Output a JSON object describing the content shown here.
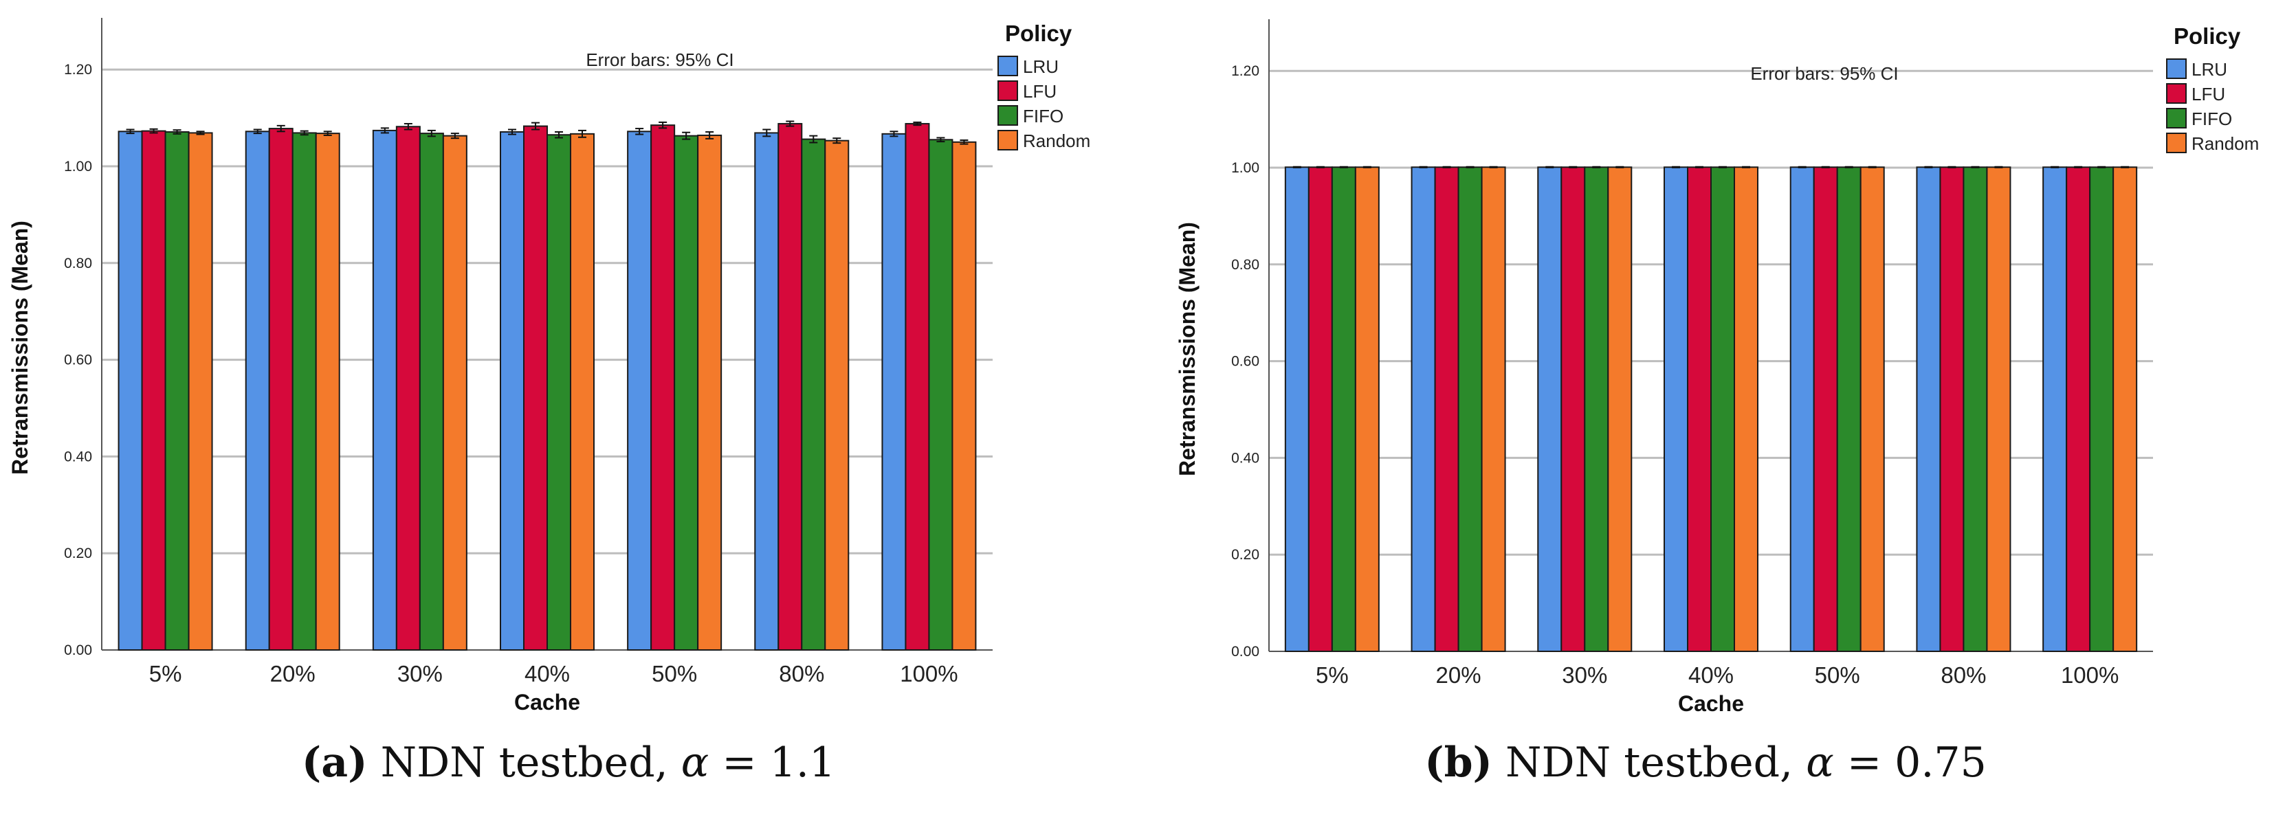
{
  "chart_data": [
    {
      "type": "bar",
      "panel": "a",
      "annotation": "Error bars: 95% CI",
      "xlabel": "Cache",
      "ylabel": "Retransmissions (Mean)",
      "ylim": [
        0,
        1.25
      ],
      "yticks": [
        "0.00",
        "0.20",
        "0.40",
        "0.60",
        "0.80",
        "1.00",
        "1.20"
      ],
      "grid": true,
      "legend_title": "Policy",
      "legend_position": "top-right",
      "categories": [
        "5%",
        "20%",
        "30%",
        "40%",
        "50%",
        "80%",
        "100%"
      ],
      "series": [
        {
          "name": "LRU",
          "color": "#5593e6",
          "values": [
            1.072,
            1.072,
            1.074,
            1.071,
            1.072,
            1.069,
            1.067
          ],
          "ci": [
            0.004,
            0.004,
            0.005,
            0.005,
            0.006,
            0.007,
            0.005
          ]
        },
        {
          "name": "LFU",
          "color": "#d6093b",
          "values": [
            1.073,
            1.078,
            1.082,
            1.083,
            1.085,
            1.088,
            1.088
          ],
          "ci": [
            0.004,
            0.006,
            0.006,
            0.007,
            0.006,
            0.005,
            0.003
          ]
        },
        {
          "name": "FIFO",
          "color": "#2b8a2b",
          "values": [
            1.071,
            1.069,
            1.068,
            1.065,
            1.063,
            1.056,
            1.055
          ],
          "ci": [
            0.004,
            0.004,
            0.006,
            0.006,
            0.007,
            0.007,
            0.004
          ]
        },
        {
          "name": "Random",
          "color": "#f47a2b",
          "values": [
            1.069,
            1.068,
            1.063,
            1.067,
            1.064,
            1.053,
            1.05
          ],
          "ci": [
            0.003,
            0.004,
            0.005,
            0.007,
            0.007,
            0.005,
            0.004
          ]
        }
      ],
      "caption": {
        "label": "(a)",
        "text": "NDN testbed,",
        "alpha_symbol": "α",
        "alpha_value": "= 1.1"
      }
    },
    {
      "type": "bar",
      "panel": "b",
      "annotation": "Error bars: 95% CI",
      "xlabel": "Cache",
      "ylabel": "Retransmissions (Mean)",
      "ylim": [
        0,
        1.25
      ],
      "yticks": [
        "0.00",
        "0.20",
        "0.40",
        "0.60",
        "0.80",
        "1.00",
        "1.20"
      ],
      "grid": true,
      "legend_title": "Policy",
      "legend_position": "top-right",
      "categories": [
        "5%",
        "20%",
        "30%",
        "40%",
        "50%",
        "80%",
        "100%"
      ],
      "series": [
        {
          "name": "LRU",
          "color": "#5593e6",
          "values": [
            1.001,
            1.001,
            1.001,
            1.001,
            1.001,
            1.001,
            1.001
          ],
          "ci": [
            0.0008,
            0.0008,
            0.0008,
            0.0008,
            0.0008,
            0.0008,
            0.0008
          ]
        },
        {
          "name": "LFU",
          "color": "#d6093b",
          "values": [
            1.001,
            1.001,
            1.001,
            1.001,
            1.001,
            1.001,
            1.001
          ],
          "ci": [
            0.0008,
            0.0008,
            0.0008,
            0.0008,
            0.0008,
            0.0008,
            0.0008
          ]
        },
        {
          "name": "FIFO",
          "color": "#2b8a2b",
          "values": [
            1.001,
            1.001,
            1.001,
            1.001,
            1.001,
            1.001,
            1.001
          ],
          "ci": [
            0.0008,
            0.0008,
            0.0008,
            0.0008,
            0.0008,
            0.0008,
            0.0008
          ]
        },
        {
          "name": "Random",
          "color": "#f47a2b",
          "values": [
            1.001,
            1.001,
            1.001,
            1.001,
            1.001,
            1.001,
            1.001
          ],
          "ci": [
            0.0008,
            0.0008,
            0.0008,
            0.0008,
            0.0008,
            0.0008,
            0.0008
          ]
        }
      ],
      "caption": {
        "label": "(b)",
        "text": "NDN testbed,",
        "alpha_symbol": "α",
        "alpha_value": "= 0.75"
      }
    }
  ]
}
